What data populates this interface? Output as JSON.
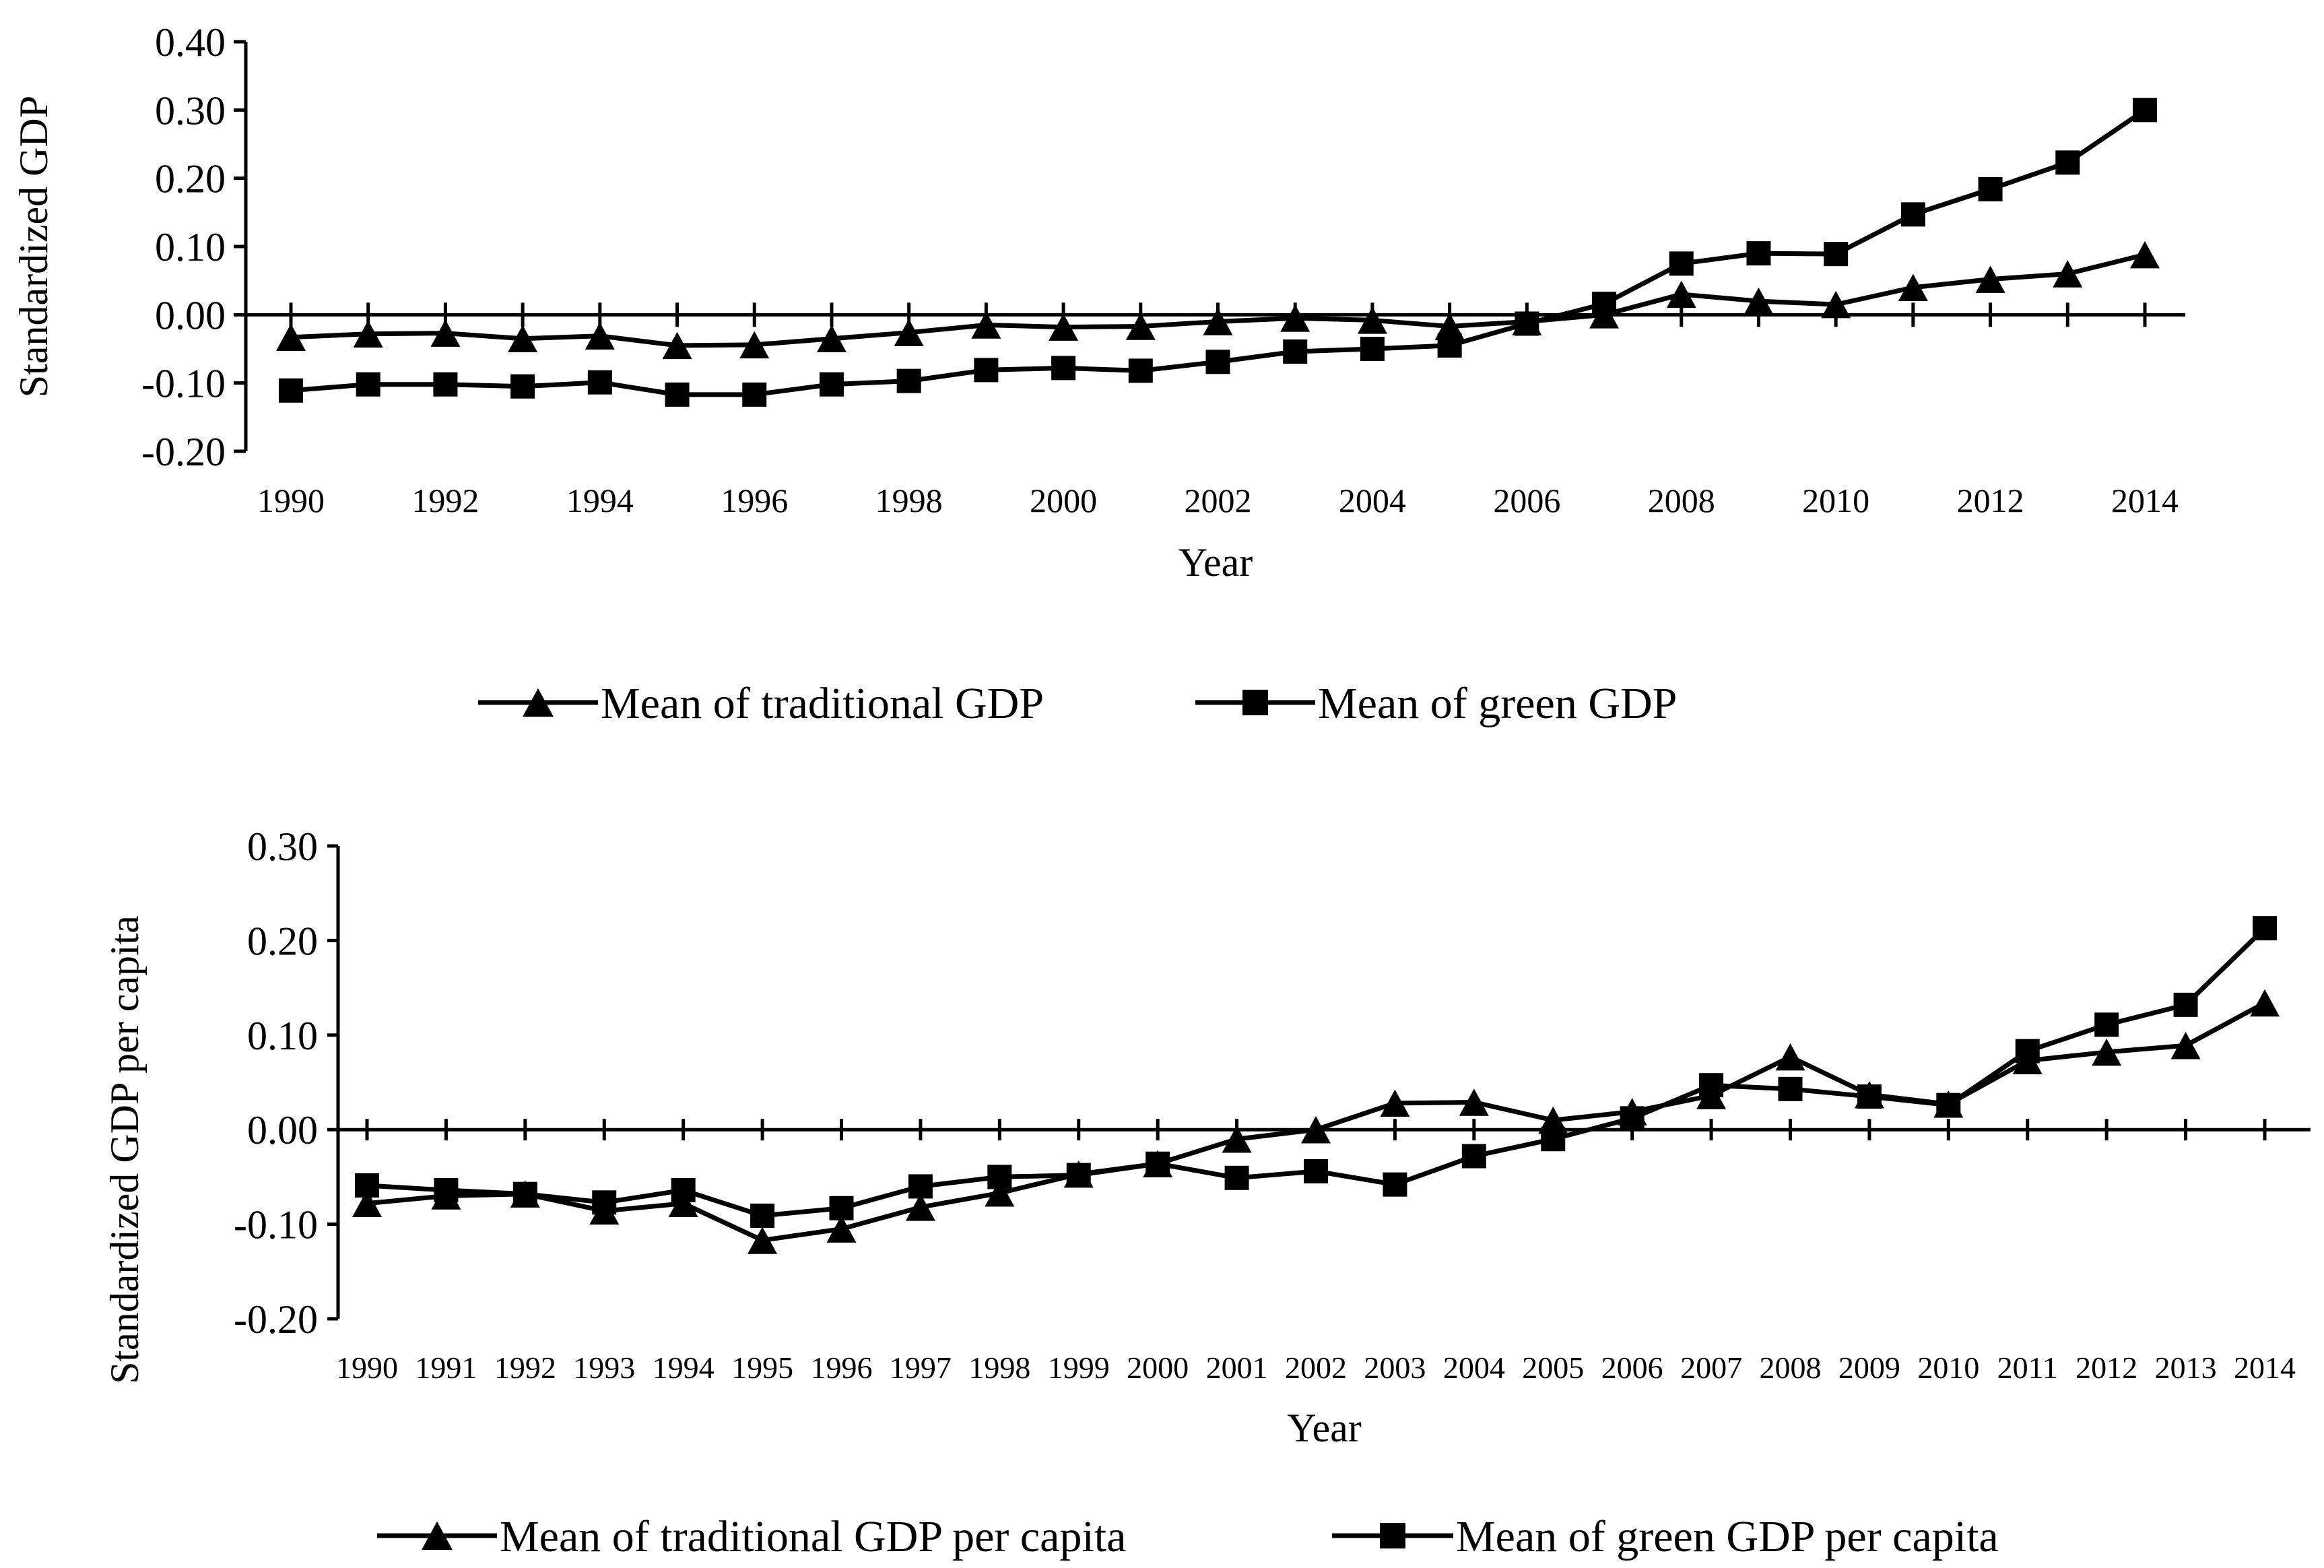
{
  "chart_data": [
    {
      "type": "line",
      "ylabel": "Standardized GDP",
      "xlabel": "Year",
      "ylim": [
        -0.2,
        0.4
      ],
      "yticks": [
        "0.40",
        "0.30",
        "0.20",
        "0.10",
        "0.00",
        "-0.10",
        "-0.20"
      ],
      "yticks_values": [
        0.4,
        0.3,
        0.2,
        0.1,
        0.0,
        -0.1,
        -0.2
      ],
      "x": [
        1990,
        1991,
        1992,
        1993,
        1994,
        1995,
        1996,
        1997,
        1998,
        1999,
        2000,
        2001,
        2002,
        2003,
        2004,
        2005,
        2006,
        2007,
        2008,
        2009,
        2010,
        2011,
        2012,
        2013,
        2014
      ],
      "xtick_labels": [
        "1990",
        "1992",
        "1994",
        "1996",
        "1998",
        "2000",
        "2002",
        "2004",
        "2006",
        "2008",
        "2010",
        "2012",
        "2014"
      ],
      "legend": "bottom",
      "series": [
        {
          "name": "Mean of traditional GDP",
          "marker": "triangle",
          "values": [
            -0.033,
            -0.028,
            -0.027,
            -0.035,
            -0.031,
            -0.045,
            -0.044,
            -0.035,
            -0.026,
            -0.015,
            -0.018,
            -0.017,
            -0.01,
            -0.005,
            -0.008,
            -0.017,
            -0.01,
            0.0,
            0.03,
            0.02,
            0.015,
            0.04,
            0.052,
            0.06,
            0.088
          ]
        },
        {
          "name": "Mean of green GDP",
          "marker": "square",
          "values": [
            -0.111,
            -0.102,
            -0.102,
            -0.105,
            -0.099,
            -0.117,
            -0.117,
            -0.102,
            -0.097,
            -0.081,
            -0.078,
            -0.082,
            -0.069,
            -0.054,
            -0.05,
            -0.045,
            -0.013,
            0.016,
            0.075,
            0.09,
            0.089,
            0.147,
            0.184,
            0.223,
            0.3
          ]
        }
      ]
    },
    {
      "type": "line",
      "ylabel": "Standardized GDP per capita",
      "xlabel": "Year",
      "ylim": [
        -0.2,
        0.3
      ],
      "yticks": [
        "0.30",
        "0.20",
        "0.10",
        "0.00",
        "-0.10",
        "-0.20"
      ],
      "yticks_values": [
        0.3,
        0.2,
        0.1,
        0.0,
        -0.1,
        -0.2
      ],
      "x": [
        1990,
        1991,
        1992,
        1993,
        1994,
        1995,
        1996,
        1997,
        1998,
        1999,
        2000,
        2001,
        2002,
        2003,
        2004,
        2005,
        2006,
        2007,
        2008,
        2009,
        2010,
        2011,
        2012,
        2013,
        2014
      ],
      "xtick_labels": [
        "1990",
        "1991",
        "1992",
        "1993",
        "1994",
        "1995",
        "1996",
        "1997",
        "1998",
        "1999",
        "2000",
        "2001",
        "2002",
        "2003",
        "2004",
        "2005",
        "2006",
        "2007",
        "2008",
        "2009",
        "2010",
        "2011",
        "2012",
        "2013",
        "2014"
      ],
      "legend": "bottom",
      "series": [
        {
          "name": "Mean of traditional GDP per capita",
          "marker": "triangle",
          "values": [
            -0.078,
            -0.07,
            -0.068,
            -0.086,
            -0.078,
            -0.117,
            -0.105,
            -0.082,
            -0.067,
            -0.047,
            -0.036,
            -0.01,
            0.0,
            0.028,
            0.029,
            0.01,
            0.019,
            0.036,
            0.077,
            0.037,
            0.027,
            0.073,
            0.082,
            0.089,
            0.134
          ]
        },
        {
          "name": "Mean of green GDP per capita",
          "marker": "square",
          "values": [
            -0.059,
            -0.064,
            -0.068,
            -0.077,
            -0.064,
            -0.091,
            -0.083,
            -0.06,
            -0.05,
            -0.048,
            -0.036,
            -0.051,
            -0.044,
            -0.058,
            -0.028,
            -0.01,
            0.012,
            0.047,
            0.043,
            0.035,
            0.026,
            0.083,
            0.111,
            0.132,
            0.213
          ]
        }
      ]
    }
  ]
}
